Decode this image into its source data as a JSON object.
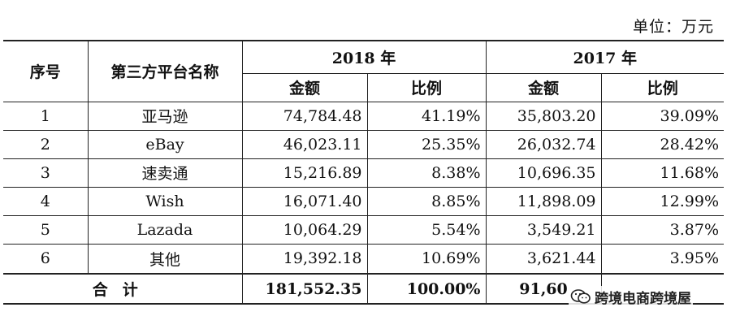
{
  "unit_label": "单位：万元",
  "headers": {
    "seq": "序号",
    "platform": "第三方平台名称",
    "year2018": "2018 年",
    "year2017": "2017 年",
    "amount": "金额",
    "ratio": "比例"
  },
  "rows": [
    {
      "seq": "1",
      "platform": "亚马逊",
      "amount2018": "74,784.48",
      "ratio2018": "41.19%",
      "amount2017": "35,803.20",
      "ratio2017": "39.09%"
    },
    {
      "seq": "2",
      "platform": "eBay",
      "amount2018": "46,023.11",
      "ratio2018": "25.35%",
      "amount2017": "26,032.74",
      "ratio2017": "28.42%"
    },
    {
      "seq": "3",
      "platform": "速卖通",
      "amount2018": "15,216.89",
      "ratio2018": "8.38%",
      "amount2017": "10,696.35",
      "ratio2017": "11.68%"
    },
    {
      "seq": "4",
      "platform": "Wish",
      "amount2018": "16,071.40",
      "ratio2018": "8.85%",
      "amount2017": "11,898.09",
      "ratio2017": "12.99%"
    },
    {
      "seq": "5",
      "platform": "Lazada",
      "amount2018": "10,064.29",
      "ratio2018": "5.54%",
      "amount2017": "3,549.21",
      "ratio2017": "3.87%"
    },
    {
      "seq": "6",
      "platform": "其他",
      "amount2018": "19,392.18",
      "ratio2018": "10.69%",
      "amount2017": "3,621.44",
      "ratio2017": "3.95%"
    }
  ],
  "total": {
    "label": "合计",
    "amount2018": "181,552.35",
    "ratio2018": "100.00%",
    "amount2017_visible": "91,60"
  },
  "watermark": {
    "text": "跨境电商跨境屋",
    "icon": "wechat-icon"
  }
}
